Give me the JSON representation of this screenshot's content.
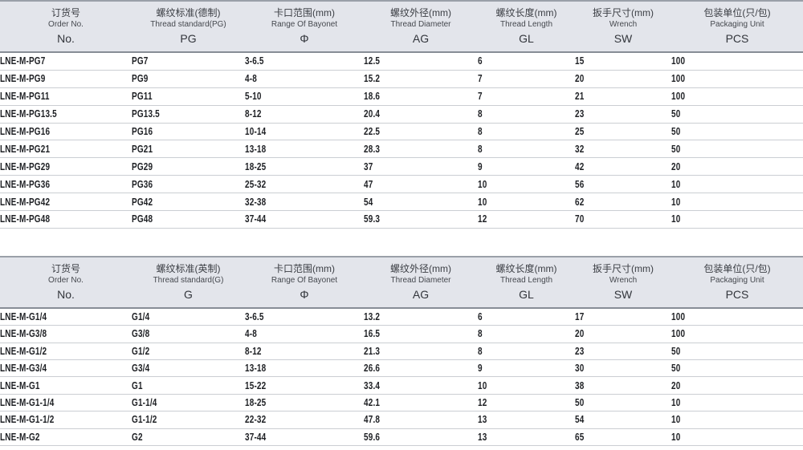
{
  "page": {
    "background": "#ffffff",
    "header_bg": "#e3e5eb",
    "header_top_border": "#9aa0a8",
    "header_bottom_border": "#878d96",
    "row_divider": "#cbced3",
    "data_text_color": "#1f2125",
    "header_text_color": "#3b3e44"
  },
  "tables": [
    {
      "id": "pg-thread-table",
      "columns": [
        {
          "key": "order-no",
          "cn": "订货号",
          "en": "Order No.",
          "abbr": "No."
        },
        {
          "key": "thread-standard",
          "cn": "螺纹标准(德制)",
          "en": "Thread standard(PG)",
          "abbr": "PG"
        },
        {
          "key": "bayonet-range",
          "cn": "卡口范围(mm)",
          "en": "Range Of Bayonet",
          "abbr": "Φ"
        },
        {
          "key": "thread-diameter",
          "cn": "螺纹外径(mm)",
          "en": "Thread Diameter",
          "abbr": "AG"
        },
        {
          "key": "thread-length",
          "cn": "螺纹长度(mm)",
          "en": "Thread Length",
          "abbr": "GL"
        },
        {
          "key": "wrench-size",
          "cn": "扳手尺寸(mm)",
          "en": "Wrench",
          "abbr": "SW"
        },
        {
          "key": "packaging-unit",
          "cn": "包装单位(只/包)",
          "en": "Packaging Unit",
          "abbr": "PCS"
        }
      ],
      "rows": [
        [
          "LNE-M-PG7",
          "PG7",
          "3-6.5",
          "12.5",
          "6",
          "15",
          "100"
        ],
        [
          "LNE-M-PG9",
          "PG9",
          "4-8",
          "15.2",
          "7",
          "20",
          "100"
        ],
        [
          "LNE-M-PG11",
          "PG11",
          "5-10",
          "18.6",
          "7",
          "21",
          "100"
        ],
        [
          "LNE-M-PG13.5",
          "PG13.5",
          "8-12",
          "20.4",
          "8",
          "23",
          "50"
        ],
        [
          "LNE-M-PG16",
          "PG16",
          "10-14",
          "22.5",
          "8",
          "25",
          "50"
        ],
        [
          "LNE-M-PG21",
          "PG21",
          "13-18",
          "28.3",
          "8",
          "32",
          "50"
        ],
        [
          "LNE-M-PG29",
          "PG29",
          "18-25",
          "37",
          "9",
          "42",
          "20"
        ],
        [
          "LNE-M-PG36",
          "PG36",
          "25-32",
          "47",
          "10",
          "56",
          "10"
        ],
        [
          "LNE-M-PG42",
          "PG42",
          "32-38",
          "54",
          "10",
          "62",
          "10"
        ],
        [
          "LNE-M-PG48",
          "PG48",
          "37-44",
          "59.3",
          "12",
          "70",
          "10"
        ]
      ]
    },
    {
      "id": "g-thread-table",
      "columns": [
        {
          "key": "order-no",
          "cn": "订货号",
          "en": "Order No.",
          "abbr": "No."
        },
        {
          "key": "thread-standard",
          "cn": "螺纹标准(英制)",
          "en": "Thread standard(G)",
          "abbr": "G"
        },
        {
          "key": "bayonet-range",
          "cn": "卡口范围(mm)",
          "en": "Range Of Bayonet",
          "abbr": "Φ"
        },
        {
          "key": "thread-diameter",
          "cn": "螺纹外径(mm)",
          "en": "Thread Diameter",
          "abbr": "AG"
        },
        {
          "key": "thread-length",
          "cn": "螺纹长度(mm)",
          "en": "Thread Length",
          "abbr": "GL"
        },
        {
          "key": "wrench-size",
          "cn": "扳手尺寸(mm)",
          "en": "Wrench",
          "abbr": "SW"
        },
        {
          "key": "packaging-unit",
          "cn": "包装单位(只/包)",
          "en": "Packaging Unit",
          "abbr": "PCS"
        }
      ],
      "rows": [
        [
          "LNE-M-G1/4",
          "G1/4",
          "3-6.5",
          "13.2",
          "6",
          "17",
          "100"
        ],
        [
          "LNE-M-G3/8",
          "G3/8",
          "4-8",
          "16.5",
          "8",
          "20",
          "100"
        ],
        [
          "LNE-M-G1/2",
          "G1/2",
          "8-12",
          "21.3",
          "8",
          "23",
          "50"
        ],
        [
          "LNE-M-G3/4",
          "G3/4",
          "13-18",
          "26.6",
          "9",
          "30",
          "50"
        ],
        [
          "LNE-M-G1",
          "G1",
          "15-22",
          "33.4",
          "10",
          "38",
          "20"
        ],
        [
          "LNE-M-G1-1/4",
          "G1-1/4",
          "18-25",
          "42.1",
          "12",
          "50",
          "10"
        ],
        [
          "LNE-M-G1-1/2",
          "G1-1/2",
          "22-32",
          "47.8",
          "13",
          "54",
          "10"
        ],
        [
          "LNE-M-G2",
          "G2",
          "37-44",
          "59.6",
          "13",
          "65",
          "10"
        ]
      ]
    }
  ]
}
